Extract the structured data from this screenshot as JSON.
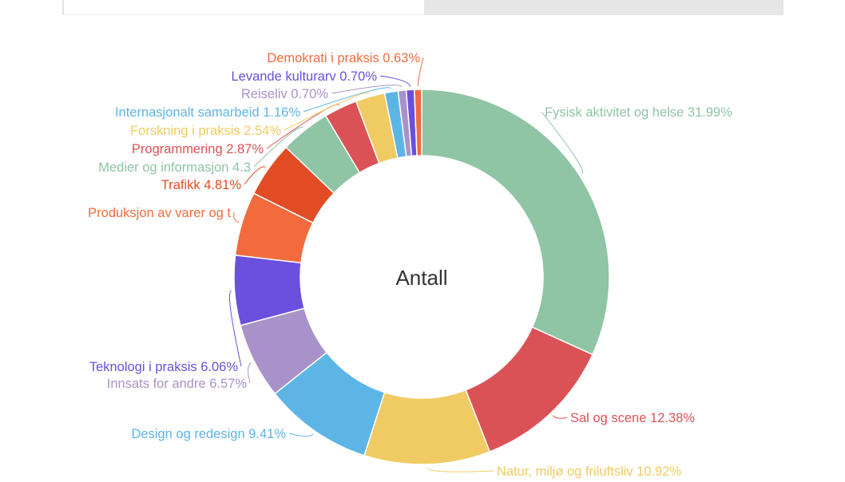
{
  "tabs": [
    {
      "label": ""
    },
    {
      "label": ""
    }
  ],
  "chart_data": {
    "type": "pie",
    "variant": "donut",
    "center_label": "Antall",
    "legend": "none",
    "slices": [
      {
        "label": "Fysisk aktivitet og helse 31.99%",
        "value": 31.99,
        "color": "#8fc4a5"
      },
      {
        "label": "Sal og scene 12.38%",
        "value": 12.38,
        "color": "#db5256"
      },
      {
        "label": "Natur, miljø og friluftsliv 10.92%",
        "value": 10.92,
        "color": "#f0cb63"
      },
      {
        "label": "Design og redesign 9.41%",
        "value": 9.41,
        "color": "#5db5e5"
      },
      {
        "label": "Innsats for andre 6.57%",
        "value": 6.57,
        "color": "#a992c9"
      },
      {
        "label": "Teknologi i praksis 6.06%",
        "value": 6.06,
        "color": "#6a50dd"
      },
      {
        "label": "Produksjon av varer og t",
        "value": 5.54,
        "color": "#f26b3d"
      },
      {
        "label": "Trafikk 4.81%",
        "value": 4.81,
        "color": "#e24c24"
      },
      {
        "label": "Medier og informasjon 4.3",
        "value": 4.34,
        "color": "#8fc4a5"
      },
      {
        "label": "Programmering 2.87%",
        "value": 2.87,
        "color": "#db5256"
      },
      {
        "label": "Forskning i praksis 2.54%",
        "value": 2.54,
        "color": "#f0cb63"
      },
      {
        "label": "Internasjonalt samarbeid 1.16%",
        "value": 1.16,
        "color": "#5db5e5"
      },
      {
        "label": "Reiseliv 0.70%",
        "value": 0.7,
        "color": "#a992c9"
      },
      {
        "label": "Levande kulturarv 0.70%",
        "value": 0.7,
        "color": "#6a50dd"
      },
      {
        "label": "Demokrati i praksis 0.63%",
        "value": 0.63,
        "color": "#f26b3d"
      }
    ]
  }
}
